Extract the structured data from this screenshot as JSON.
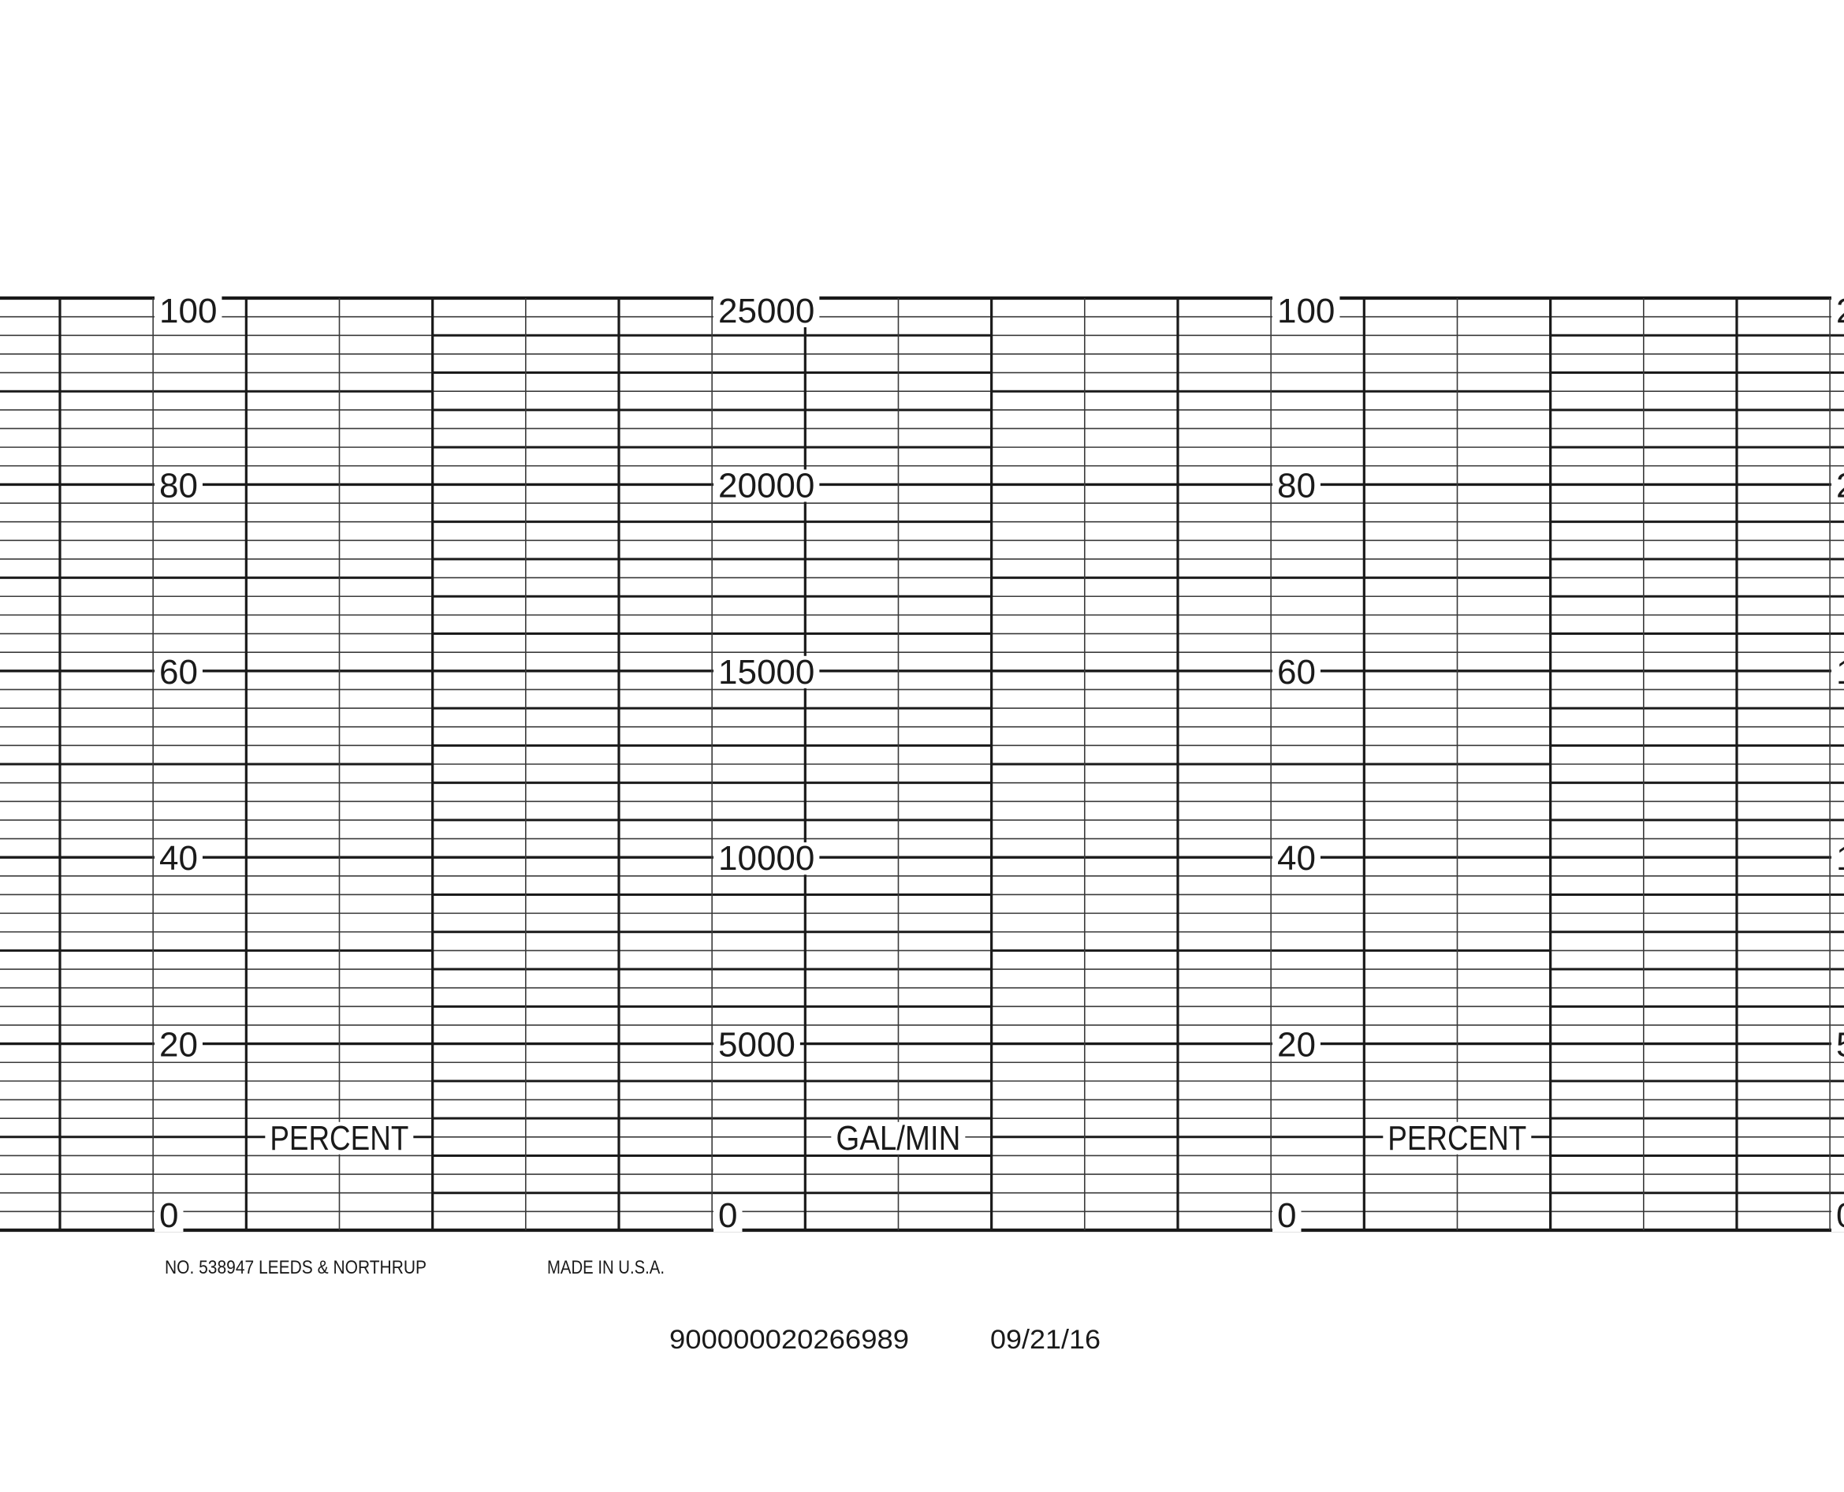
{
  "chart_data": {
    "type": "line",
    "title": "",
    "xlabel": "",
    "series": [],
    "grid": true,
    "y_axes": [
      {
        "unit_label": "PERCENT",
        "ylim": [
          0,
          100
        ],
        "ticks": [
          "0",
          "20",
          "40",
          "60",
          "80",
          "100"
        ]
      },
      {
        "unit_label": "GAL/MIN",
        "ylim": [
          0,
          25000
        ],
        "ticks": [
          "0",
          "5000",
          "10000",
          "15000",
          "20000",
          "25000"
        ]
      }
    ],
    "minor_divisions": 50
  },
  "footer": {
    "maker": "NO. 538947 LEEDS & NORTHRUP",
    "origin": "MADE IN U.S.A.",
    "serial": "900000020266989",
    "date": "09/21/16"
  },
  "colors": {
    "ink": "#1a1a1a",
    "paper": "#ffffff"
  }
}
